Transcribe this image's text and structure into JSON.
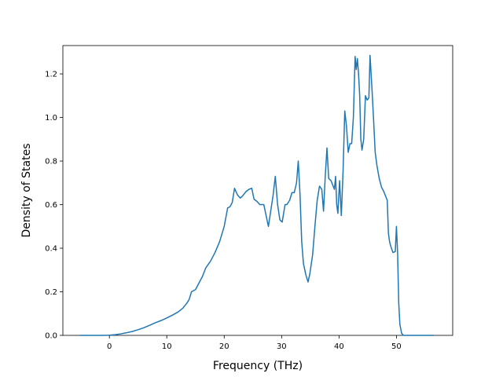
{
  "chart_data": {
    "type": "line",
    "title": "",
    "xlabel": "Frequency (THz)",
    "ylabel": "Density of States",
    "xlim": [
      -8.1,
      59.8
    ],
    "ylim": [
      0.0,
      1.33
    ],
    "xticks": [
      0,
      10,
      20,
      30,
      40,
      50
    ],
    "yticks": [
      0.0,
      0.2,
      0.4,
      0.6,
      0.8,
      1.0,
      1.2
    ],
    "xtick_labels": [
      "0",
      "10",
      "20",
      "30",
      "40",
      "50"
    ],
    "ytick_labels": [
      "0.0",
      "0.2",
      "0.4",
      "0.6",
      "0.8",
      "1.0",
      "1.2"
    ],
    "grid": false,
    "legend": "none",
    "series": [
      {
        "color": "#1f77b4",
        "x": [
          -5.2,
          -3,
          -1,
          0,
          1,
          2,
          3,
          4,
          5,
          6,
          7,
          8,
          9,
          10,
          11,
          12,
          12.8,
          13.5,
          13.9,
          14.3,
          15,
          15.6,
          16.2,
          16.8,
          17.6,
          18.4,
          19.2,
          20,
          20.6,
          21,
          21.4,
          21.8,
          22.3,
          22.8,
          23.2,
          23.8,
          24.3,
          24.8,
          25.2,
          25.7,
          26.2,
          26.9,
          27.3,
          27.7,
          28.1,
          28.5,
          28.9,
          29.3,
          29.7,
          30.1,
          30.6,
          30.9,
          31.4,
          31.8,
          32.2,
          32.6,
          32.9,
          33.2,
          33.5,
          33.8,
          34.2,
          34.6,
          34.9,
          35.4,
          35.8,
          36.2,
          36.6,
          37,
          37.3,
          37.6,
          37.9,
          38.2,
          38.6,
          38.9,
          39.2,
          39.4,
          39.6,
          39.8,
          40.1,
          40.4,
          40.7,
          41.0,
          41.3,
          41.6,
          41.9,
          42.2,
          42.5,
          42.8,
          43.0,
          43.2,
          43.4,
          43.6,
          43.8,
          44.0,
          44.3,
          44.6,
          44.9,
          45.2,
          45.4,
          45.7,
          46.0,
          46.3,
          46.6,
          47.0,
          47.4,
          47.8,
          48.1,
          48.4,
          48.6,
          48.8,
          49.0,
          49.4,
          49.8,
          50.0,
          50.2,
          50.4,
          50.6,
          50.9,
          51.2,
          51.5,
          52,
          53,
          56.5
        ],
        "y": [
          0.0,
          0.0,
          0.0,
          0.001,
          0.003,
          0.007,
          0.012,
          0.018,
          0.026,
          0.035,
          0.046,
          0.058,
          0.068,
          0.08,
          0.093,
          0.108,
          0.125,
          0.148,
          0.165,
          0.2,
          0.21,
          0.24,
          0.27,
          0.31,
          0.34,
          0.38,
          0.43,
          0.5,
          0.585,
          0.59,
          0.61,
          0.675,
          0.645,
          0.63,
          0.64,
          0.66,
          0.67,
          0.675,
          0.625,
          0.615,
          0.6,
          0.6,
          0.55,
          0.5,
          0.57,
          0.64,
          0.73,
          0.6,
          0.53,
          0.52,
          0.6,
          0.6,
          0.62,
          0.655,
          0.655,
          0.7,
          0.8,
          0.65,
          0.43,
          0.33,
          0.28,
          0.245,
          0.28,
          0.37,
          0.5,
          0.62,
          0.685,
          0.67,
          0.57,
          0.73,
          0.86,
          0.72,
          0.71,
          0.69,
          0.67,
          0.73,
          0.6,
          0.56,
          0.71,
          0.55,
          0.75,
          1.03,
          0.96,
          0.84,
          0.88,
          0.88,
          1.0,
          1.28,
          1.22,
          1.27,
          1.2,
          1.1,
          0.9,
          0.85,
          0.9,
          1.1,
          1.08,
          1.09,
          1.285,
          1.15,
          1.0,
          0.84,
          0.78,
          0.72,
          0.68,
          0.66,
          0.64,
          0.62,
          0.47,
          0.43,
          0.41,
          0.38,
          0.385,
          0.5,
          0.38,
          0.15,
          0.05,
          0.01,
          0.0,
          0.0,
          0.0,
          0.0,
          0.0
        ]
      }
    ]
  }
}
